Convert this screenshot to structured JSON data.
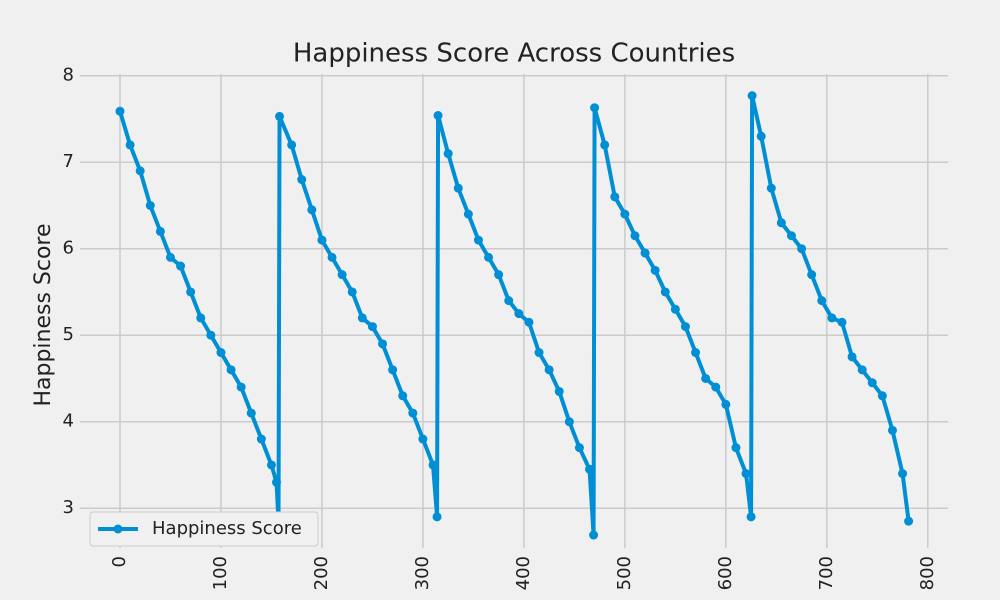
{
  "chart_data": {
    "type": "line",
    "title": "Happiness Score Across Countries",
    "ylabel": "Happiness Score",
    "x": [
      0,
      10,
      20,
      30,
      40,
      50,
      60,
      70,
      80,
      90,
      100,
      110,
      120,
      130,
      140,
      150,
      155,
      157,
      158,
      170,
      180,
      190,
      200,
      210,
      220,
      230,
      240,
      250,
      260,
      270,
      280,
      290,
      300,
      310,
      314,
      315,
      325,
      335,
      345,
      355,
      365,
      375,
      385,
      395,
      405,
      415,
      425,
      435,
      445,
      455,
      465,
      469,
      470,
      480,
      490,
      500,
      510,
      520,
      530,
      540,
      550,
      560,
      570,
      580,
      590,
      600,
      610,
      620,
      625,
      626,
      635,
      645,
      655,
      665,
      675,
      685,
      695,
      705,
      715,
      725,
      735,
      745,
      755,
      765,
      775,
      781
    ],
    "series": [
      {
        "name": "Happiness Score",
        "color": "#008fd5",
        "values": [
          7.59,
          7.2,
          6.9,
          6.5,
          6.2,
          5.9,
          5.8,
          5.5,
          5.2,
          5.0,
          4.8,
          4.6,
          4.4,
          4.1,
          3.8,
          3.5,
          3.3,
          2.84,
          7.53,
          7.2,
          6.8,
          6.45,
          6.1,
          5.9,
          5.7,
          5.5,
          5.2,
          5.1,
          4.9,
          4.6,
          4.3,
          4.1,
          3.8,
          3.5,
          2.9,
          7.54,
          7.1,
          6.7,
          6.4,
          6.1,
          5.9,
          5.7,
          5.4,
          5.25,
          5.15,
          4.8,
          4.6,
          4.35,
          4.0,
          3.7,
          3.45,
          2.69,
          7.63,
          7.2,
          6.6,
          6.4,
          6.15,
          5.95,
          5.75,
          5.5,
          5.3,
          5.1,
          4.8,
          4.5,
          4.4,
          4.2,
          3.7,
          3.4,
          2.9,
          7.77,
          7.3,
          6.7,
          6.3,
          6.15,
          6.0,
          5.7,
          5.4,
          5.2,
          5.15,
          4.75,
          4.6,
          4.45,
          4.3,
          3.9,
          3.4,
          2.85
        ]
      }
    ],
    "xlim": [
      -39.6,
      820
    ],
    "ylim": [
      2.54,
      8.02
    ],
    "xticks": [
      0,
      100,
      200,
      300,
      400,
      500,
      600,
      700,
      800
    ],
    "yticks": [
      3,
      4,
      5,
      6,
      7,
      8
    ],
    "grid": true,
    "legend": "lower left"
  }
}
